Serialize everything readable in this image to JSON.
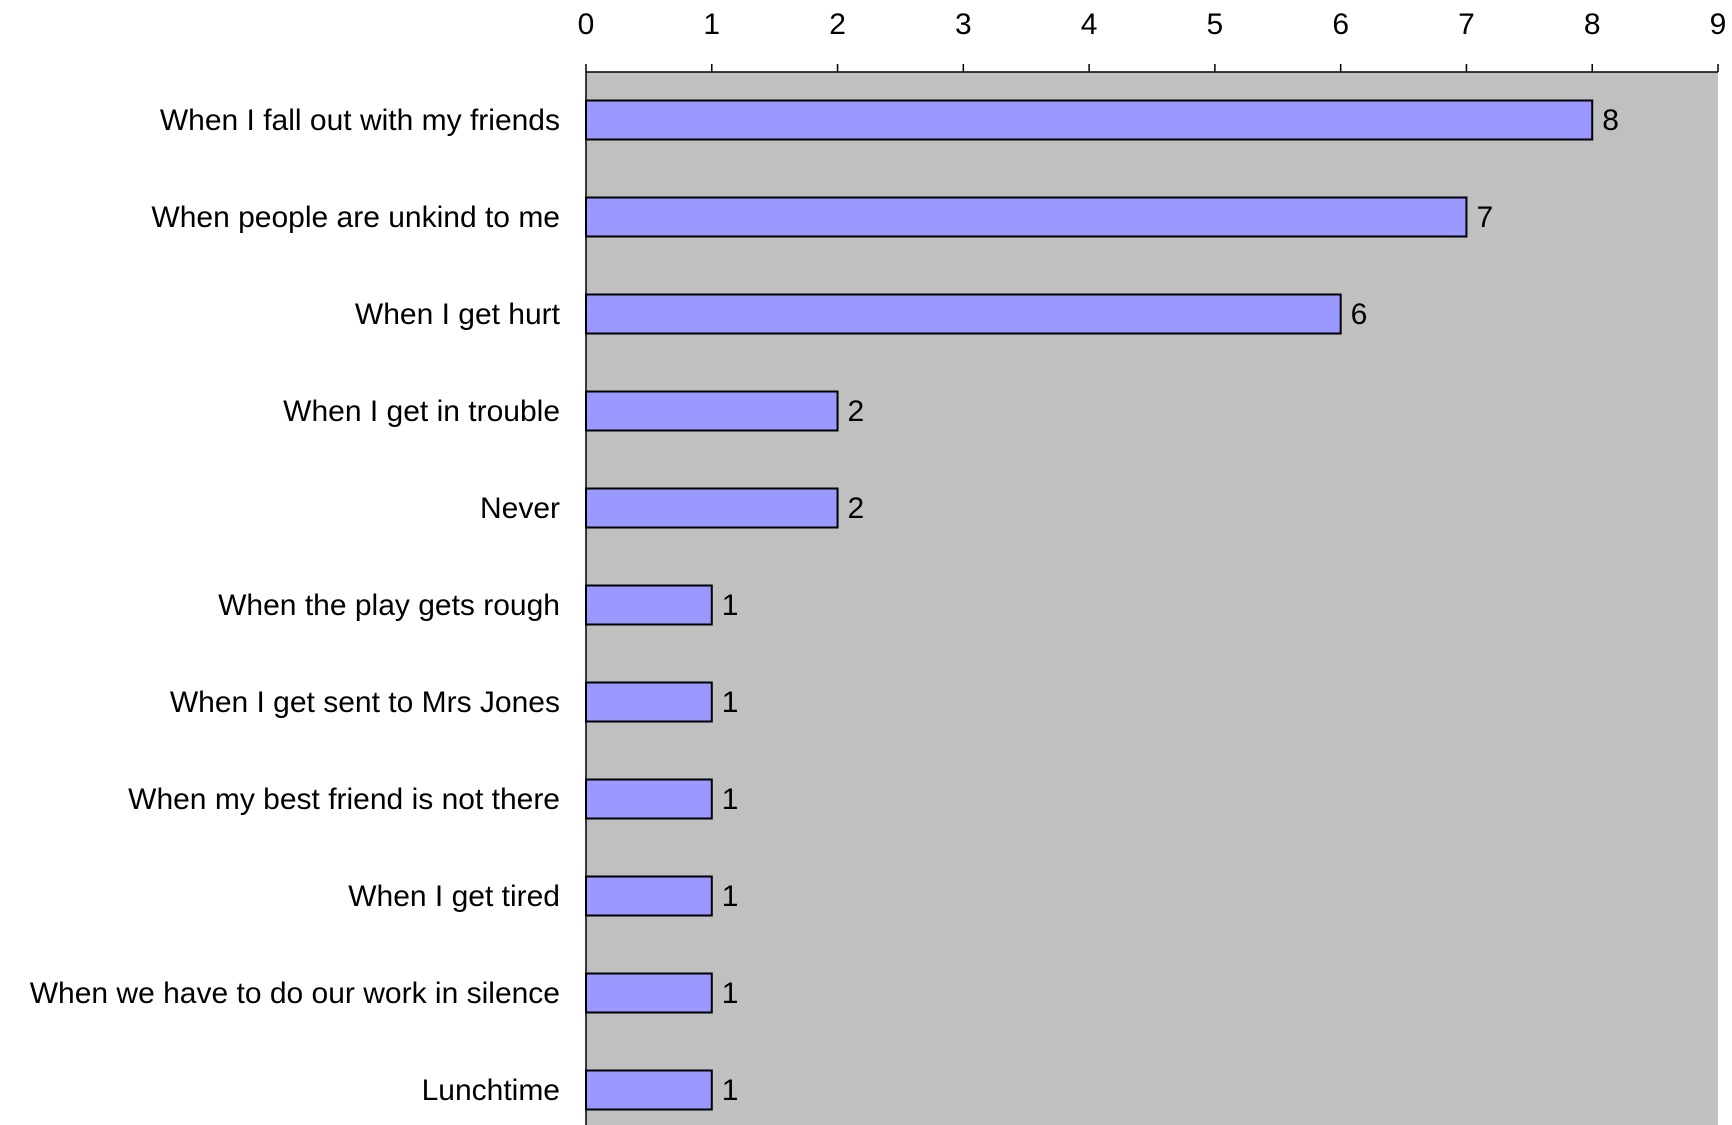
{
  "chart_data": {
    "type": "bar",
    "orientation": "horizontal",
    "categories": [
      "When I fall out with my friends",
      "When people are unkind to me",
      "When I get hurt",
      "When I get in trouble",
      "Never",
      "When the play gets rough",
      "When I get sent to Mrs Jones",
      "When my best friend is not there",
      "When I get tired",
      "When we have to do our work in silence",
      "Lunchtime"
    ],
    "values": [
      8,
      7,
      6,
      2,
      2,
      1,
      1,
      1,
      1,
      1,
      1
    ],
    "data_labels": [
      "8",
      "7",
      "6",
      "2",
      "2",
      "1",
      "1",
      "1",
      "1",
      "1",
      "1"
    ],
    "xlim": [
      0,
      9
    ],
    "x_ticks": [
      "0",
      "1",
      "2",
      "3",
      "4",
      "5",
      "6",
      "7",
      "8",
      "9"
    ],
    "x_axis_position": "top",
    "title": "",
    "xlabel": "",
    "ylabel": "",
    "grid": false,
    "legend": "none",
    "colors": {
      "bar_fill": "#9999FF",
      "bar_stroke": "#000000",
      "plot_background": "#C0C0C0",
      "page_background": "#FFFFFF"
    }
  }
}
